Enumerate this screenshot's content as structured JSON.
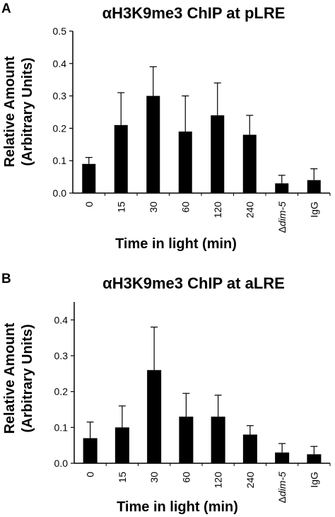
{
  "chart_data": [
    {
      "panel": "A",
      "type": "bar",
      "title": "αH3K9me3 ChIP at pLRE",
      "ylabel_line1": "Relative Amount",
      "ylabel_line2": "(Arbitrary Units)",
      "xlabel": "Time in light (min)",
      "categories": [
        {
          "text": "0"
        },
        {
          "text": "15"
        },
        {
          "text": "30"
        },
        {
          "text": "60"
        },
        {
          "text": "120"
        },
        {
          "text": "240"
        },
        {
          "prefix": "Δ",
          "italic": "dim-5"
        },
        {
          "text": "IgG"
        }
      ],
      "values": [
        0.09,
        0.21,
        0.3,
        0.19,
        0.24,
        0.18,
        0.03,
        0.04
      ],
      "errors": [
        0.02,
        0.1,
        0.09,
        0.11,
        0.1,
        0.06,
        0.025,
        0.035
      ],
      "ylim": [
        0,
        0.5
      ],
      "yticks": [
        "0.0",
        "0.1",
        "0.2",
        "0.3",
        "0.4",
        "0.5"
      ],
      "grid": false,
      "bar_color": "#000000"
    },
    {
      "panel": "B",
      "type": "bar",
      "title": "αH3K9me3 ChIP at aLRE",
      "ylabel_line1": "Relative Amount",
      "ylabel_line2": "(Arbitrary Units)",
      "xlabel": "Time in light (min)",
      "categories": [
        {
          "text": "0"
        },
        {
          "text": "15"
        },
        {
          "text": "30"
        },
        {
          "text": "60"
        },
        {
          "text": "120"
        },
        {
          "text": "240"
        },
        {
          "prefix": "Δ",
          "italic": "dim-5"
        },
        {
          "text": "IgG"
        }
      ],
      "values": [
        0.07,
        0.1,
        0.26,
        0.13,
        0.13,
        0.08,
        0.03,
        0.025
      ],
      "errors": [
        0.045,
        0.06,
        0.12,
        0.065,
        0.06,
        0.025,
        0.025,
        0.022
      ],
      "ylim": [
        0,
        0.45
      ],
      "yticks": [
        "0.0",
        "0.1",
        "0.2",
        "0.3",
        "0.4"
      ],
      "ytick_values": [
        0,
        0.1,
        0.2,
        0.3,
        0.4
      ],
      "grid": false,
      "bar_color": "#000000"
    }
  ]
}
